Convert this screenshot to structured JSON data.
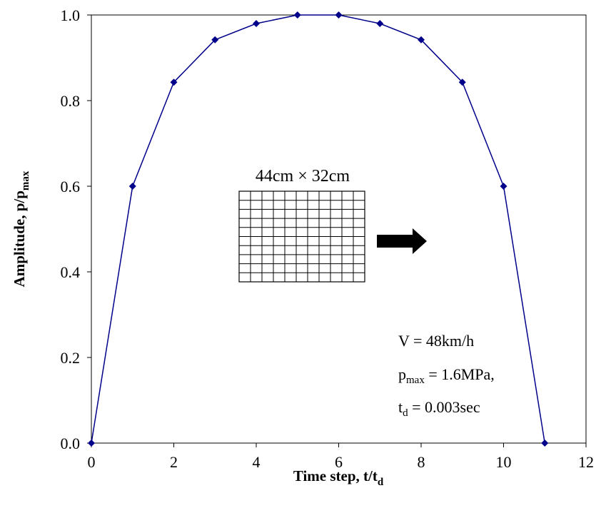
{
  "chart_data": {
    "type": "line",
    "title": "",
    "xlabel": {
      "main": "Time step, t/t",
      "sub": "d"
    },
    "ylabel": {
      "main": "Amplitude, p/p",
      "sub": "max"
    },
    "xlim": [
      0,
      12
    ],
    "ylim": [
      0,
      1
    ],
    "xticks": [
      0,
      2,
      4,
      6,
      8,
      10,
      12
    ],
    "xtick_labels": [
      "0",
      "2",
      "4",
      "6",
      "8",
      "10",
      "12"
    ],
    "yticks": [
      0,
      0.2,
      0.4,
      0.6,
      0.8,
      1.0
    ],
    "ytick_labels": [
      "0.0",
      "0.2",
      "0.4",
      "0.6",
      "0.8",
      "1.0"
    ],
    "grid": false,
    "series": [
      {
        "x": [
          0,
          1,
          2,
          3,
          4,
          5,
          6,
          7,
          8,
          9,
          10,
          11
        ],
        "y": [
          0,
          0.6,
          0.843,
          0.942,
          0.98,
          1.0,
          1.0,
          0.98,
          0.942,
          0.843,
          0.6,
          0
        ],
        "color": "#00008B",
        "marker": "diamond"
      }
    ],
    "annotations": {
      "mesh_label": "44cm × 32cm",
      "mesh_grid": {
        "columns": 11,
        "rows": 10
      },
      "arrow": "arrow-right",
      "params": [
        {
          "main": "V = 48km/h",
          "sub": "",
          "rest": ""
        },
        {
          "main": "p",
          "sub": "max",
          "rest": " = 1.6MPa,"
        },
        {
          "main": "t",
          "sub": "d",
          "rest": " = 0.003sec"
        }
      ]
    }
  }
}
